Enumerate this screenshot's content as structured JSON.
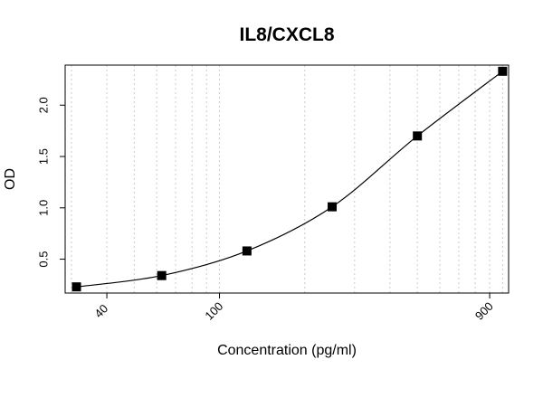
{
  "chart_data": {
    "type": "scatter",
    "title": "IL8/CXCL8",
    "xlabel": "Concentration (pg/ml)",
    "ylabel": "OD",
    "x_scale": "log",
    "grid": "vertical dotted (log scale)",
    "x_ticks": [
      {
        "value": 40,
        "label": "40"
      },
      {
        "value": 100,
        "label": "100"
      },
      {
        "value": 900,
        "label": "900"
      }
    ],
    "y_ticks": [
      {
        "value": 0.5,
        "label": "0.5"
      },
      {
        "value": 1.0,
        "label": "1.0"
      },
      {
        "value": 1.5,
        "label": "1.5"
      },
      {
        "value": 2.0,
        "label": "2.0"
      }
    ],
    "xlim": [
      28.5,
      1050
    ],
    "ylim": [
      0.17,
      2.39
    ],
    "series": [
      {
        "x": [
          31.25,
          62.5,
          125,
          250,
          500,
          1000
        ],
        "y": [
          0.23,
          0.34,
          0.58,
          1.01,
          1.7,
          2.33
        ],
        "marker": "filled-square",
        "fit_curve": true
      }
    ],
    "colors": {
      "marker": "#000000",
      "curve": "#000000",
      "grid": "#cccccc"
    }
  }
}
